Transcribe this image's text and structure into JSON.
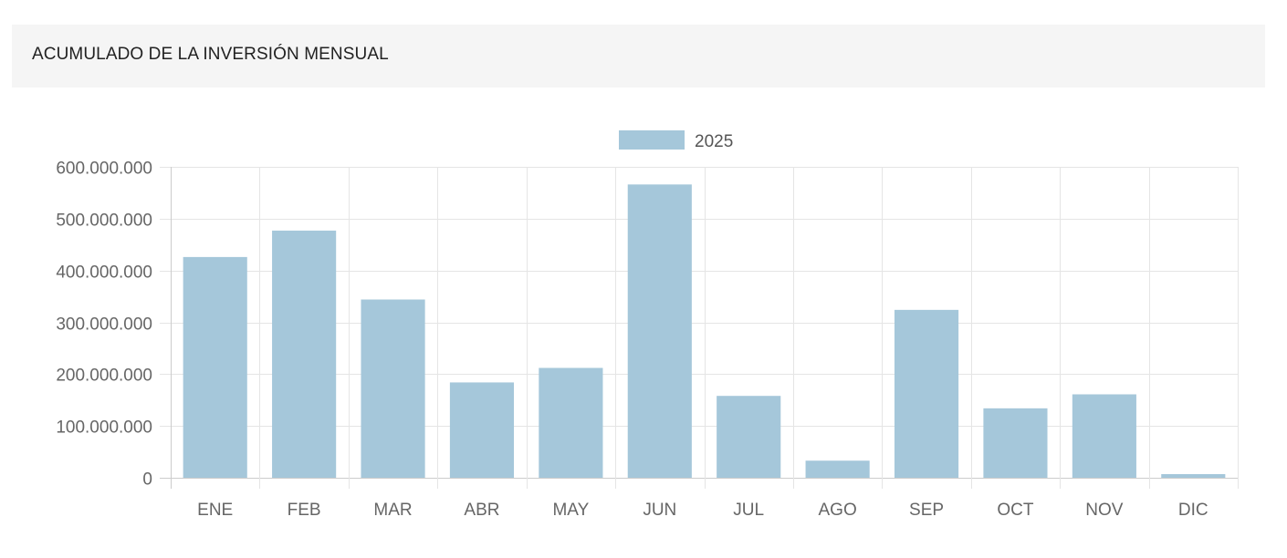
{
  "panel": {
    "title": "ACUMULADO DE LA INVERSIÓN MENSUAL"
  },
  "chart_data": {
    "type": "bar",
    "categories": [
      "ENE",
      "FEB",
      "MAR",
      "ABR",
      "MAY",
      "JUN",
      "JUL",
      "AGO",
      "SEP",
      "OCT",
      "NOV",
      "DIC"
    ],
    "series": [
      {
        "name": "2025",
        "color": "#a5c7da",
        "values": [
          426000000,
          477000000,
          344000000,
          184000000,
          212000000,
          566000000,
          158000000,
          33000000,
          324000000,
          134000000,
          161000000,
          7000000
        ]
      }
    ],
    "ylim": [
      0,
      600000000
    ],
    "yticks": [
      0,
      100000000,
      200000000,
      300000000,
      400000000,
      500000000,
      600000000
    ],
    "ytick_labels": [
      "0",
      "100.000.000",
      "200.000.000",
      "300.000.000",
      "400.000.000",
      "500.000.000",
      "600.000.000"
    ],
    "grid": true,
    "legend": "top-center",
    "gridColor": "#e5e5e5",
    "axisColor": "#cccccc"
  }
}
